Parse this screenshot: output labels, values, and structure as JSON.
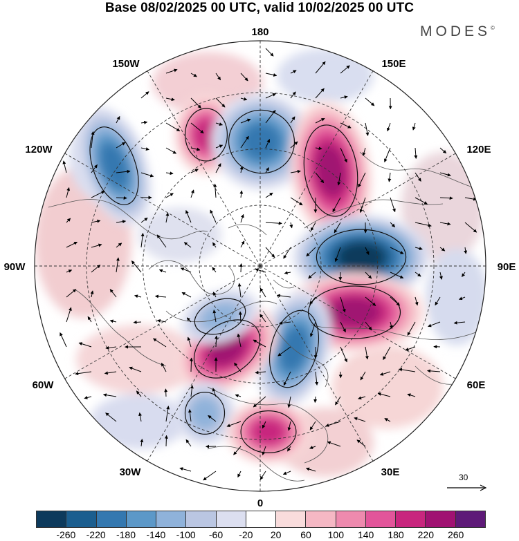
{
  "title": "Base 08/02/2025 00 UTC, valid 10/02/2025 00 UTC",
  "brand": "MODES",
  "brand_mark": "©",
  "map": {
    "projection": "north-polar-stereographic",
    "meridian_labels": {
      "top": "180",
      "upper_left": "150W",
      "upper_right": "150E",
      "left_upper": "120W",
      "right_upper": "120E",
      "left": "90W",
      "right": "90E",
      "left_lower": "60W",
      "right_lower": "60E",
      "lower_left": "30W",
      "lower_right": "30E",
      "bottom": "0"
    },
    "features": [
      {
        "name": "negative-anomaly-120w",
        "sign": "negative",
        "strength": "strong"
      },
      {
        "name": "positive-anomaly-150w",
        "sign": "positive",
        "strength": "strong"
      },
      {
        "name": "negative-anomaly-180",
        "sign": "negative",
        "strength": "strong"
      },
      {
        "name": "positive-anomaly-150e",
        "sign": "positive",
        "strength": "very-strong"
      },
      {
        "name": "negative-anomaly-90e",
        "sign": "negative",
        "strength": "very-strong"
      },
      {
        "name": "positive-anomaly-60e",
        "sign": "positive",
        "strength": "very-strong"
      },
      {
        "name": "negative-anomaly-scandinavia",
        "sign": "negative",
        "strength": "strong"
      },
      {
        "name": "positive-anomaly-atlantic",
        "sign": "positive",
        "strength": "very-strong"
      },
      {
        "name": "negative-anomaly-greenland",
        "sign": "negative",
        "strength": "moderate"
      },
      {
        "name": "negative-anomaly-azores",
        "sign": "negative",
        "strength": "moderate"
      },
      {
        "name": "positive-anomaly-mediterranean",
        "sign": "positive",
        "strength": "strong"
      }
    ]
  },
  "reference_vector": {
    "label": "30"
  },
  "colorbar": {
    "colors": [
      "#0d3a5c",
      "#1b5e8f",
      "#3478b0",
      "#5c98c8",
      "#8fb2da",
      "#bac6e2",
      "#dcdff0",
      "#ffffff",
      "#f9dcdc",
      "#f5b8c4",
      "#ee8aae",
      "#e2559a",
      "#c8267e",
      "#a01272",
      "#5e1a78"
    ],
    "tick_labels": [
      "-260",
      "-220",
      "-180",
      "-140",
      "-100",
      "-60",
      "-20",
      "20",
      "60",
      "100",
      "140",
      "180",
      "220",
      "260"
    ]
  }
}
